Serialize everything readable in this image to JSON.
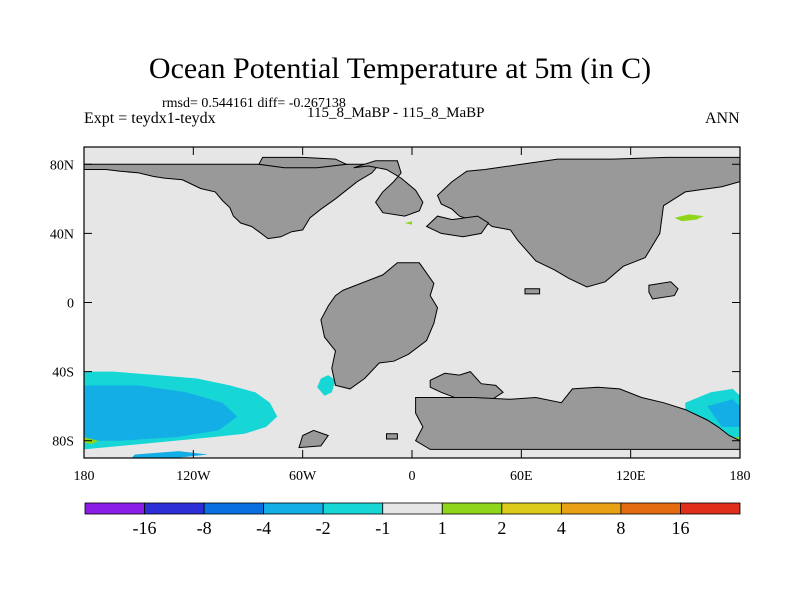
{
  "header": {
    "title": "Ocean Potential Temperature at 5m (in C)",
    "stats": "rmsd= 0.544161  diff= -0.267138",
    "expt": "Expt = teydx1-teydx",
    "cases": "115_8_MaBP - 115_8_MaBP",
    "season": "ANN"
  },
  "chart_data": {
    "type": "heatmap",
    "title": "Ocean Potential Temperature at 5m (in C)",
    "subtitle": "rmsd= 0.544161  diff= -0.267138",
    "xlabel": "",
    "ylabel": "",
    "x_range": [
      -180,
      180
    ],
    "y_range": [
      -90,
      90
    ],
    "x_ticks": [
      {
        "value": -180,
        "label": "180"
      },
      {
        "value": -120,
        "label": "120W"
      },
      {
        "value": -60,
        "label": "60W"
      },
      {
        "value": 0,
        "label": "0"
      },
      {
        "value": 60,
        "label": "60E"
      },
      {
        "value": 120,
        "label": "120E"
      },
      {
        "value": 180,
        "label": "180"
      }
    ],
    "y_ticks": [
      {
        "value": 80,
        "label": "80N"
      },
      {
        "value": 40,
        "label": "40N"
      },
      {
        "value": 0,
        "label": "0"
      },
      {
        "value": -40,
        "label": "40S"
      },
      {
        "value": -80,
        "label": "80S"
      }
    ],
    "colorbar": {
      "levels": [
        "-16",
        "-8",
        "-4",
        "-2",
        "-1",
        "1",
        "2",
        "4",
        "8",
        "16"
      ],
      "colors": [
        "#8a1ee6",
        "#2e2ed6",
        "#0a6fe0",
        "#14aee6",
        "#17d6d6",
        "#e6e6e6",
        "#8fd61a",
        "#dccb1a",
        "#e8a014",
        "#e46a10",
        "#e0301c"
      ]
    },
    "colors": {
      "land": "#999999",
      "ocean_neutral": "#e6e6e6",
      "weak_cool": "#17d6d6",
      "cool": "#14aee6",
      "weak_warm": "#8fd61a"
    },
    "land_masses": [
      {
        "name": "north-america",
        "lonlat": [
          [
            -180,
            80
          ],
          [
            -180,
            77
          ],
          [
            -168,
            77
          ],
          [
            -160,
            76
          ],
          [
            -150,
            75
          ],
          [
            -142,
            73
          ],
          [
            -136,
            72
          ],
          [
            -126,
            71
          ],
          [
            -120,
            68
          ],
          [
            -116,
            66
          ],
          [
            -108,
            64
          ],
          [
            -104,
            59
          ],
          [
            -100,
            55
          ],
          [
            -98,
            50
          ],
          [
            -94,
            46
          ],
          [
            -88,
            44
          ],
          [
            -84,
            41
          ],
          [
            -79,
            37
          ],
          [
            -72,
            38
          ],
          [
            -66,
            41
          ],
          [
            -60,
            42
          ],
          [
            -56,
            49
          ],
          [
            -50,
            54
          ],
          [
            -42,
            60
          ],
          [
            -36,
            65
          ],
          [
            -30,
            70
          ],
          [
            -22,
            75
          ],
          [
            -18,
            80
          ]
        ]
      },
      {
        "name": "greenland-east-atlantic",
        "lonlat": [
          [
            -32,
            78
          ],
          [
            -20,
            82
          ],
          [
            -8,
            82
          ],
          [
            -6,
            75
          ],
          [
            -10,
            70
          ],
          [
            -16,
            64
          ],
          [
            -20,
            58
          ],
          [
            -16,
            52
          ],
          [
            -4,
            50
          ],
          [
            4,
            53
          ],
          [
            6,
            58
          ],
          [
            2,
            65
          ],
          [
            -6,
            72
          ],
          [
            -14,
            77
          ],
          [
            -24,
            79
          ]
        ]
      },
      {
        "name": "arctic-islands",
        "lonlat": [
          [
            -84,
            80
          ],
          [
            -82,
            84
          ],
          [
            -60,
            84
          ],
          [
            -42,
            83
          ],
          [
            -36,
            80
          ],
          [
            -52,
            78
          ],
          [
            -70,
            78
          ]
        ]
      },
      {
        "name": "south-america",
        "lonlat": [
          [
            -38,
            7
          ],
          [
            -16,
            16
          ],
          [
            -8,
            23
          ],
          [
            4,
            23
          ],
          [
            12,
            11
          ],
          [
            10,
            4
          ],
          [
            14,
            -3
          ],
          [
            12,
            -12
          ],
          [
            8,
            -22
          ],
          [
            -2,
            -30
          ],
          [
            -10,
            -34
          ],
          [
            -18,
            -35
          ],
          [
            -26,
            -44
          ],
          [
            -34,
            -50
          ],
          [
            -42,
            -48
          ],
          [
            -44,
            -38
          ],
          [
            -42,
            -28
          ],
          [
            -48,
            -20
          ],
          [
            -50,
            -10
          ],
          [
            -46,
            -2
          ],
          [
            -42,
            4
          ]
        ]
      },
      {
        "name": "eurasia",
        "lonlat": [
          [
            22,
            70
          ],
          [
            30,
            76
          ],
          [
            40,
            77
          ],
          [
            60,
            80
          ],
          [
            80,
            83
          ],
          [
            110,
            83
          ],
          [
            140,
            84
          ],
          [
            180,
            84
          ],
          [
            180,
            70
          ],
          [
            170,
            67
          ],
          [
            150,
            64
          ],
          [
            138,
            56
          ],
          [
            136,
            40
          ],
          [
            128,
            26
          ],
          [
            116,
            21
          ],
          [
            106,
            12
          ],
          [
            96,
            9
          ],
          [
            86,
            14
          ],
          [
            78,
            19
          ],
          [
            68,
            24
          ],
          [
            58,
            36
          ],
          [
            54,
            42
          ],
          [
            44,
            44
          ],
          [
            40,
            47
          ],
          [
            32,
            48
          ],
          [
            26,
            50
          ],
          [
            22,
            54
          ],
          [
            16,
            57
          ],
          [
            14,
            62
          ],
          [
            18,
            66
          ]
        ]
      },
      {
        "name": "europe-fragment",
        "lonlat": [
          [
            8,
            44
          ],
          [
            14,
            50
          ],
          [
            22,
            48
          ],
          [
            36,
            50
          ],
          [
            42,
            46
          ],
          [
            38,
            40
          ],
          [
            28,
            38
          ],
          [
            16,
            40
          ]
        ]
      },
      {
        "name": "asia-peninsula",
        "lonlat": [
          [
            130,
            10
          ],
          [
            142,
            12
          ],
          [
            146,
            8
          ],
          [
            144,
            4
          ],
          [
            132,
            2
          ],
          [
            130,
            6
          ]
        ]
      },
      {
        "name": "small-island-tropical",
        "lonlat": [
          [
            62,
            8
          ],
          [
            70,
            8
          ],
          [
            70,
            5
          ],
          [
            62,
            5
          ]
        ]
      },
      {
        "name": "africa",
        "lonlat": [
          [
            10,
            -45
          ],
          [
            18,
            -41
          ],
          [
            26,
            -42
          ],
          [
            32,
            -40
          ],
          [
            38,
            -47
          ],
          [
            46,
            -48
          ],
          [
            50,
            -52
          ],
          [
            44,
            -56
          ],
          [
            26,
            -56
          ],
          [
            16,
            -52
          ],
          [
            10,
            -49
          ]
        ]
      },
      {
        "name": "antarctica-indian",
        "lonlat": [
          [
            2,
            -55
          ],
          [
            18,
            -55
          ],
          [
            34,
            -55
          ],
          [
            54,
            -56
          ],
          [
            68,
            -55
          ],
          [
            82,
            -58
          ],
          [
            88,
            -50
          ],
          [
            102,
            -49
          ],
          [
            114,
            -50
          ],
          [
            126,
            -55
          ],
          [
            138,
            -58
          ],
          [
            150,
            -62
          ],
          [
            162,
            -68
          ],
          [
            168,
            -72
          ],
          [
            174,
            -77
          ],
          [
            180,
            -80
          ],
          [
            180,
            -85
          ],
          [
            120,
            -85
          ],
          [
            60,
            -85
          ],
          [
            10,
            -85
          ],
          [
            2,
            -80
          ],
          [
            6,
            -72
          ],
          [
            2,
            -64
          ]
        ]
      },
      {
        "name": "antarctica-west",
        "lonlat": [
          [
            -50,
            -83
          ],
          [
            -46,
            -77
          ],
          [
            -54,
            -74
          ],
          [
            -60,
            -77
          ],
          [
            -62,
            -84
          ]
        ]
      },
      {
        "name": "small-island-south",
        "lonlat": [
          [
            -14,
            -76
          ],
          [
            -8,
            -76
          ],
          [
            -8,
            -79
          ],
          [
            -14,
            -79
          ]
        ]
      }
    ],
    "anomaly_regions": [
      {
        "name": "southern-ocean-weak-cool",
        "level": "-2 to -1",
        "lonlat": [
          [
            -180,
            -40
          ],
          [
            -164,
            -40
          ],
          [
            -140,
            -42
          ],
          [
            -118,
            -44
          ],
          [
            -100,
            -48
          ],
          [
            -86,
            -52
          ],
          [
            -78,
            -58
          ],
          [
            -74,
            -66
          ],
          [
            -80,
            -72
          ],
          [
            -92,
            -76
          ],
          [
            -110,
            -78
          ],
          [
            -130,
            -80
          ],
          [
            -150,
            -82
          ],
          [
            -170,
            -84
          ],
          [
            -180,
            -85
          ]
        ]
      },
      {
        "name": "southern-ocean-cool-core",
        "level": "-4 to -2",
        "lonlat": [
          [
            -180,
            -48
          ],
          [
            -150,
            -48
          ],
          [
            -124,
            -52
          ],
          [
            -104,
            -58
          ],
          [
            -96,
            -66
          ],
          [
            -106,
            -74
          ],
          [
            -130,
            -78
          ],
          [
            -160,
            -80
          ],
          [
            -180,
            -80
          ]
        ]
      },
      {
        "name": "southern-ocean-cool-patch",
        "level": "-4 to -2",
        "lonlat": [
          [
            -152,
            -88
          ],
          [
            -128,
            -86
          ],
          [
            -112,
            -88
          ],
          [
            -130,
            -90
          ],
          [
            -154,
            -90
          ]
        ]
      },
      {
        "name": "atlantic-cool-blob",
        "level": "-2 to -1",
        "lonlat": [
          [
            -50,
            -44
          ],
          [
            -46,
            -42
          ],
          [
            -42,
            -45
          ],
          [
            -44,
            -52
          ],
          [
            -48,
            -54
          ],
          [
            -52,
            -49
          ]
        ]
      },
      {
        "name": "pacific-cool-east",
        "level": "-2 to -1",
        "lonlat": [
          [
            150,
            -58
          ],
          [
            164,
            -52
          ],
          [
            176,
            -50
          ],
          [
            180,
            -54
          ],
          [
            180,
            -78
          ],
          [
            172,
            -80
          ],
          [
            160,
            -80
          ],
          [
            150,
            -72
          ]
        ]
      },
      {
        "name": "pacific-cool-east-core",
        "level": "-4 to -2",
        "lonlat": [
          [
            162,
            -60
          ],
          [
            176,
            -56
          ],
          [
            180,
            -60
          ],
          [
            180,
            -72
          ],
          [
            170,
            -72
          ]
        ]
      },
      {
        "name": "north-pacific-warm",
        "level": "1 to 2",
        "lonlat": [
          [
            144,
            49
          ],
          [
            152,
            51
          ],
          [
            160,
            50
          ],
          [
            156,
            48
          ],
          [
            148,
            47
          ]
        ]
      },
      {
        "name": "small-warm-atlantic",
        "level": "1 to 2",
        "lonlat": [
          [
            -4,
            46
          ],
          [
            0,
            47
          ],
          [
            0,
            45
          ]
        ]
      },
      {
        "name": "small-warm-south-west",
        "level": "1 to 2",
        "lonlat": [
          [
            -180,
            -78
          ],
          [
            -172,
            -80
          ],
          [
            -176,
            -82
          ],
          [
            -180,
            -81
          ]
        ]
      },
      {
        "name": "small-warm-south-east",
        "level": "1 to 2",
        "lonlat": [
          [
            176,
            -78
          ],
          [
            180,
            -78
          ],
          [
            180,
            -80
          ],
          [
            176,
            -79
          ]
        ]
      }
    ]
  }
}
